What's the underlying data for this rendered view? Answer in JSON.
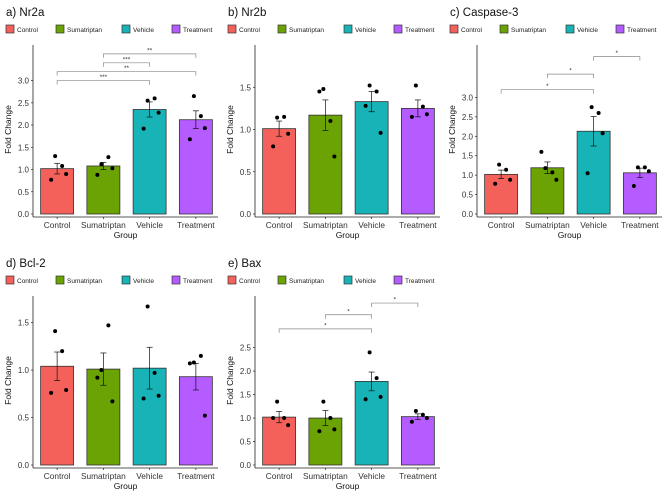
{
  "legend_colors": {
    "Control": "#F4615A",
    "Sumatriptan": "#6AA303",
    "Vehicle": "#17B3B6",
    "Treatment": "#B45CFF"
  },
  "chart_data": [
    {
      "type": "bar",
      "title": "a) Nr2a",
      "xlabel": "Group",
      "ylabel": "Fold Change",
      "categories": [
        "Control",
        "Sumatriptan",
        "Vehicle",
        "Treatment"
      ],
      "legend": [
        "Control",
        "Sumatriptan",
        "Vehicle",
        "Treatment"
      ],
      "legend_position": "top",
      "values": [
        1.02,
        1.08,
        2.35,
        2.12
      ],
      "errors": [
        0.12,
        0.08,
        0.17,
        0.2
      ],
      "points": [
        [
          1.3,
          1.08,
          0.9,
          0.77
        ],
        [
          1.12,
          1.28,
          1.03,
          0.88
        ],
        [
          2.55,
          2.6,
          2.28,
          1.92
        ],
        [
          2.65,
          2.2,
          1.93,
          1.68
        ]
      ],
      "ylim": [
        0,
        3.8
      ],
      "yticks": [
        0,
        0.5,
        1,
        1.5,
        2,
        2.5,
        3
      ],
      "significance": [
        {
          "from": 0,
          "to": 2,
          "y": 3.0,
          "label": "***"
        },
        {
          "from": 0,
          "to": 3,
          "y": 3.2,
          "label": "**"
        },
        {
          "from": 1,
          "to": 2,
          "y": 3.4,
          "label": "***"
        },
        {
          "from": 1,
          "to": 3,
          "y": 3.6,
          "label": "**"
        }
      ]
    },
    {
      "type": "bar",
      "title": "b) Nr2b",
      "xlabel": "Group",
      "ylabel": "Fold Change",
      "categories": [
        "Control",
        "Sumatriptan",
        "Vehicle",
        "Treatment"
      ],
      "legend": [
        "Control",
        "Sumatriptan",
        "Vehicle",
        "Treatment"
      ],
      "legend_position": "top",
      "values": [
        1.01,
        1.17,
        1.33,
        1.25
      ],
      "errors": [
        0.09,
        0.18,
        0.12,
        0.1
      ],
      "points": [
        [
          1.14,
          1.15,
          0.95,
          0.8
        ],
        [
          1.48,
          1.1,
          0.68,
          1.45
        ],
        [
          1.52,
          1.45,
          0.96,
          1.28
        ],
        [
          1.52,
          1.27,
          1.18,
          1.15
        ]
      ],
      "ylim": [
        0,
        2.0
      ],
      "yticks": [
        0,
        0.5,
        1,
        1.5
      ],
      "significance": []
    },
    {
      "type": "bar",
      "title": "c) Caspase-3",
      "xlabel": "Group",
      "ylabel": "Fold Change",
      "categories": [
        "Control",
        "Sumatriptan",
        "Vehicle",
        "Treatment"
      ],
      "legend": [
        "Control",
        "Sumatriptan",
        "Vehicle",
        "Treatment"
      ],
      "legend_position": "top",
      "values": [
        1.02,
        1.19,
        2.13,
        1.06
      ],
      "errors": [
        0.11,
        0.15,
        0.38,
        0.12
      ],
      "points": [
        [
          1.27,
          1.14,
          0.88,
          0.78
        ],
        [
          1.18,
          1.07,
          0.88,
          1.6
        ],
        [
          2.75,
          2.6,
          2.08,
          1.05
        ],
        [
          1.2,
          1.2,
          1.1,
          0.72
        ]
      ],
      "ylim": [
        0,
        4.35
      ],
      "yticks": [
        0,
        0.5,
        1,
        1.5,
        2,
        2.5,
        3
      ],
      "significance": [
        {
          "from": 0,
          "to": 2,
          "y": 3.2,
          "label": "*"
        },
        {
          "from": 1,
          "to": 2,
          "y": 3.6,
          "label": "*"
        },
        {
          "from": 2,
          "to": 3,
          "y": 4.05,
          "label": "*"
        }
      ]
    },
    {
      "type": "bar",
      "title": "d) Bcl-2",
      "xlabel": "Group",
      "ylabel": "Fold Change",
      "categories": [
        "Control",
        "Sumatriptan",
        "Vehicle",
        "Treatment"
      ],
      "legend": [
        "Control",
        "Sumatriptan",
        "Vehicle",
        "Treatment"
      ],
      "legend_position": "top",
      "values": [
        1.04,
        1.01,
        1.02,
        0.93
      ],
      "errors": [
        0.15,
        0.17,
        0.22,
        0.14
      ],
      "points": [
        [
          1.41,
          1.2,
          0.79,
          0.76
        ],
        [
          1.0,
          1.47,
          0.67,
          0.92
        ],
        [
          1.67,
          0.97,
          0.73,
          0.7
        ],
        [
          1.08,
          1.15,
          0.52,
          1.07
        ]
      ],
      "ylim": [
        0,
        1.78
      ],
      "yticks": [
        0,
        0.5,
        1,
        1.5
      ],
      "significance": []
    },
    {
      "type": "bar",
      "title": "e) Bax",
      "xlabel": "Group",
      "ylabel": "Fold Change",
      "categories": [
        "Control",
        "Sumatriptan",
        "Vehicle",
        "Treatment"
      ],
      "legend": [
        "Control",
        "Sumatriptan",
        "Vehicle",
        "Treatment"
      ],
      "legend_position": "top",
      "values": [
        1.02,
        1.0,
        1.78,
        1.03
      ],
      "errors": [
        0.12,
        0.16,
        0.2,
        0.06
      ],
      "points": [
        [
          1.35,
          1.0,
          0.85,
          1.0
        ],
        [
          1.35,
          1.0,
          0.76,
          0.72
        ],
        [
          2.4,
          1.85,
          1.45,
          1.4
        ],
        [
          1.15,
          1.07,
          1.0,
          0.92
        ]
      ],
      "ylim": [
        0,
        3.6
      ],
      "yticks": [
        0,
        0.5,
        1,
        1.5,
        2,
        2.5
      ],
      "significance": [
        {
          "from": 0,
          "to": 2,
          "y": 2.9,
          "label": "*"
        },
        {
          "from": 1,
          "to": 2,
          "y": 3.2,
          "label": "*"
        },
        {
          "from": 2,
          "to": 3,
          "y": 3.45,
          "label": "*"
        }
      ]
    }
  ]
}
